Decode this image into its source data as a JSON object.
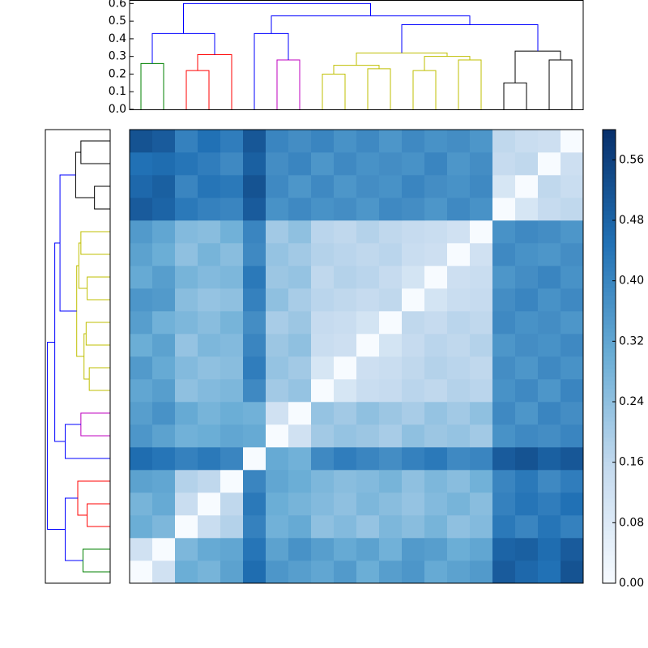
{
  "chart_data": {
    "type": "clustermap",
    "dendrogram_ylim": [
      0,
      0.62
    ],
    "dendrogram_yticks": [
      {
        "value": 0,
        "label": "0.0"
      },
      {
        "value": 0.1,
        "label": "0.1"
      },
      {
        "value": 0.2,
        "label": "0.2"
      },
      {
        "value": 0.3,
        "label": "0.3"
      },
      {
        "value": 0.4,
        "label": "0.4"
      },
      {
        "value": 0.5,
        "label": "0.5"
      },
      {
        "value": 0.6,
        "label": "0.6"
      }
    ],
    "merges": [
      {
        "left": 0,
        "right": 1,
        "height": 0.26,
        "color": "#008000"
      },
      {
        "left": 2,
        "right": 3,
        "height": 0.22,
        "color": "#ff0000"
      },
      {
        "left": 21,
        "right": 4,
        "height": 0.31,
        "color": "#ff0000"
      },
      {
        "left": 6,
        "right": 7,
        "height": 0.28,
        "color": "#bf00bf"
      },
      {
        "left": 8,
        "right": 9,
        "height": 0.2,
        "color": "#bfbf00"
      },
      {
        "left": 10,
        "right": 11,
        "height": 0.23,
        "color": "#bfbf00"
      },
      {
        "left": 24,
        "right": 25,
        "height": 0.25,
        "color": "#bfbf00"
      },
      {
        "left": 12,
        "right": 13,
        "height": 0.22,
        "color": "#bfbf00"
      },
      {
        "left": 14,
        "right": 15,
        "height": 0.28,
        "color": "#bfbf00"
      },
      {
        "left": 27,
        "right": 28,
        "height": 0.3,
        "color": "#bfbf00"
      },
      {
        "left": 26,
        "right": 29,
        "height": 0.32,
        "color": "#bfbf00"
      },
      {
        "left": 16,
        "right": 17,
        "height": 0.15,
        "color": "#000000"
      },
      {
        "left": 18,
        "right": 19,
        "height": 0.28,
        "color": "#000000"
      },
      {
        "left": 31,
        "right": 32,
        "height": 0.33,
        "color": "#000000"
      },
      {
        "left": 20,
        "right": 22,
        "height": 0.43,
        "color": "#0000ff"
      },
      {
        "left": 5,
        "right": 23,
        "height": 0.43,
        "color": "#0000ff"
      },
      {
        "left": 30,
        "right": 33,
        "height": 0.48,
        "color": "#0000ff"
      },
      {
        "left": 35,
        "right": 36,
        "height": 0.53,
        "color": "#0000ff"
      },
      {
        "left": 34,
        "right": 37,
        "height": 0.6,
        "color": "#0000ff"
      }
    ],
    "matrix": [
      [
        0,
        0.12,
        0.3,
        0.28,
        0.33,
        0.46,
        0.36,
        0.34,
        0.32,
        0.35,
        0.3,
        0.34,
        0.36,
        0.31,
        0.33,
        0.35,
        0.5,
        0.47,
        0.45,
        0.52
      ],
      [
        0.12,
        0,
        0.27,
        0.31,
        0.32,
        0.44,
        0.33,
        0.37,
        0.34,
        0.31,
        0.33,
        0.29,
        0.35,
        0.34,
        0.3,
        0.32,
        0.48,
        0.49,
        0.46,
        0.5
      ],
      [
        0.3,
        0.27,
        0,
        0.14,
        0.18,
        0.41,
        0.29,
        0.31,
        0.24,
        0.26,
        0.23,
        0.27,
        0.25,
        0.28,
        0.24,
        0.26,
        0.43,
        0.4,
        0.44,
        0.41
      ],
      [
        0.28,
        0.31,
        0.14,
        0,
        0.16,
        0.43,
        0.3,
        0.28,
        0.26,
        0.24,
        0.27,
        0.25,
        0.23,
        0.26,
        0.28,
        0.25,
        0.41,
        0.44,
        0.42,
        0.45
      ],
      [
        0.33,
        0.32,
        0.18,
        0.16,
        0,
        0.4,
        0.32,
        0.3,
        0.27,
        0.25,
        0.26,
        0.28,
        0.24,
        0.27,
        0.25,
        0.29,
        0.4,
        0.43,
        0.39,
        0.42
      ],
      [
        0.46,
        0.44,
        0.41,
        0.43,
        0.4,
        0,
        0.31,
        0.29,
        0.39,
        0.42,
        0.4,
        0.38,
        0.41,
        0.43,
        0.39,
        0.4,
        0.5,
        0.52,
        0.49,
        0.51
      ],
      [
        0.36,
        0.33,
        0.29,
        0.3,
        0.32,
        0.31,
        0,
        0.12,
        0.21,
        0.23,
        0.22,
        0.2,
        0.24,
        0.22,
        0.23,
        0.21,
        0.37,
        0.39,
        0.38,
        0.4
      ],
      [
        0.34,
        0.37,
        0.31,
        0.28,
        0.3,
        0.29,
        0.12,
        0,
        0.23,
        0.21,
        0.24,
        0.22,
        0.2,
        0.23,
        0.21,
        0.24,
        0.39,
        0.36,
        0.4,
        0.38
      ],
      [
        0.32,
        0.34,
        0.24,
        0.26,
        0.27,
        0.39,
        0.21,
        0.23,
        0,
        0.1,
        0.14,
        0.15,
        0.17,
        0.16,
        0.18,
        0.17,
        0.37,
        0.39,
        0.36,
        0.4
      ],
      [
        0.35,
        0.31,
        0.26,
        0.24,
        0.25,
        0.42,
        0.23,
        0.21,
        0.1,
        0,
        0.13,
        0.14,
        0.16,
        0.18,
        0.17,
        0.16,
        0.38,
        0.36,
        0.39,
        0.37
      ],
      [
        0.3,
        0.33,
        0.23,
        0.27,
        0.26,
        0.4,
        0.22,
        0.24,
        0.14,
        0.13,
        0,
        0.11,
        0.15,
        0.17,
        0.16,
        0.18,
        0.36,
        0.38,
        0.37,
        0.39
      ],
      [
        0.34,
        0.29,
        0.27,
        0.25,
        0.28,
        0.38,
        0.2,
        0.22,
        0.15,
        0.14,
        0.11,
        0,
        0.16,
        0.15,
        0.17,
        0.16,
        0.39,
        0.37,
        0.38,
        0.36
      ],
      [
        0.36,
        0.35,
        0.25,
        0.23,
        0.24,
        0.41,
        0.24,
        0.2,
        0.17,
        0.16,
        0.15,
        0.16,
        0,
        0.11,
        0.14,
        0.15,
        0.38,
        0.4,
        0.37,
        0.39
      ],
      [
        0.31,
        0.34,
        0.28,
        0.26,
        0.27,
        0.43,
        0.22,
        0.23,
        0.16,
        0.18,
        0.17,
        0.15,
        0.11,
        0,
        0.13,
        0.14,
        0.36,
        0.38,
        0.4,
        0.37
      ],
      [
        0.33,
        0.3,
        0.24,
        0.28,
        0.25,
        0.39,
        0.23,
        0.21,
        0.18,
        0.17,
        0.16,
        0.17,
        0.14,
        0.13,
        0,
        0.12,
        0.39,
        0.37,
        0.36,
        0.38
      ],
      [
        0.35,
        0.32,
        0.26,
        0.25,
        0.29,
        0.4,
        0.21,
        0.24,
        0.17,
        0.16,
        0.18,
        0.16,
        0.15,
        0.14,
        0.12,
        0,
        0.37,
        0.39,
        0.38,
        0.36
      ],
      [
        0.5,
        0.48,
        0.43,
        0.41,
        0.4,
        0.5,
        0.37,
        0.39,
        0.37,
        0.38,
        0.36,
        0.39,
        0.38,
        0.36,
        0.39,
        0.37,
        0,
        0.1,
        0.15,
        0.16
      ],
      [
        0.47,
        0.49,
        0.4,
        0.44,
        0.43,
        0.52,
        0.39,
        0.36,
        0.39,
        0.36,
        0.38,
        0.37,
        0.4,
        0.38,
        0.37,
        0.39,
        0.1,
        0,
        0.16,
        0.14
      ],
      [
        0.45,
        0.46,
        0.44,
        0.42,
        0.39,
        0.49,
        0.38,
        0.4,
        0.36,
        0.39,
        0.37,
        0.38,
        0.37,
        0.4,
        0.36,
        0.38,
        0.15,
        0.16,
        0,
        0.13
      ],
      [
        0.52,
        0.5,
        0.41,
        0.45,
        0.42,
        0.51,
        0.4,
        0.38,
        0.4,
        0.37,
        0.39,
        0.36,
        0.39,
        0.37,
        0.38,
        0.36,
        0.16,
        0.14,
        0.13,
        0
      ]
    ],
    "colormap": [
      "#f7fbff",
      "#c6dbef",
      "#6baed6",
      "#2171b5",
      "#08306b"
    ],
    "colorbar_lim": [
      0,
      0.6
    ],
    "colorbar_ticks": [
      {
        "value": 0,
        "label": "0.00"
      },
      {
        "value": 0.08,
        "label": "0.08"
      },
      {
        "value": 0.16,
        "label": "0.16"
      },
      {
        "value": 0.24,
        "label": "0.24"
      },
      {
        "value": 0.32,
        "label": "0.32"
      },
      {
        "value": 0.4,
        "label": "0.40"
      },
      {
        "value": 0.48,
        "label": "0.48"
      },
      {
        "value": 0.56,
        "label": "0.56"
      }
    ]
  }
}
